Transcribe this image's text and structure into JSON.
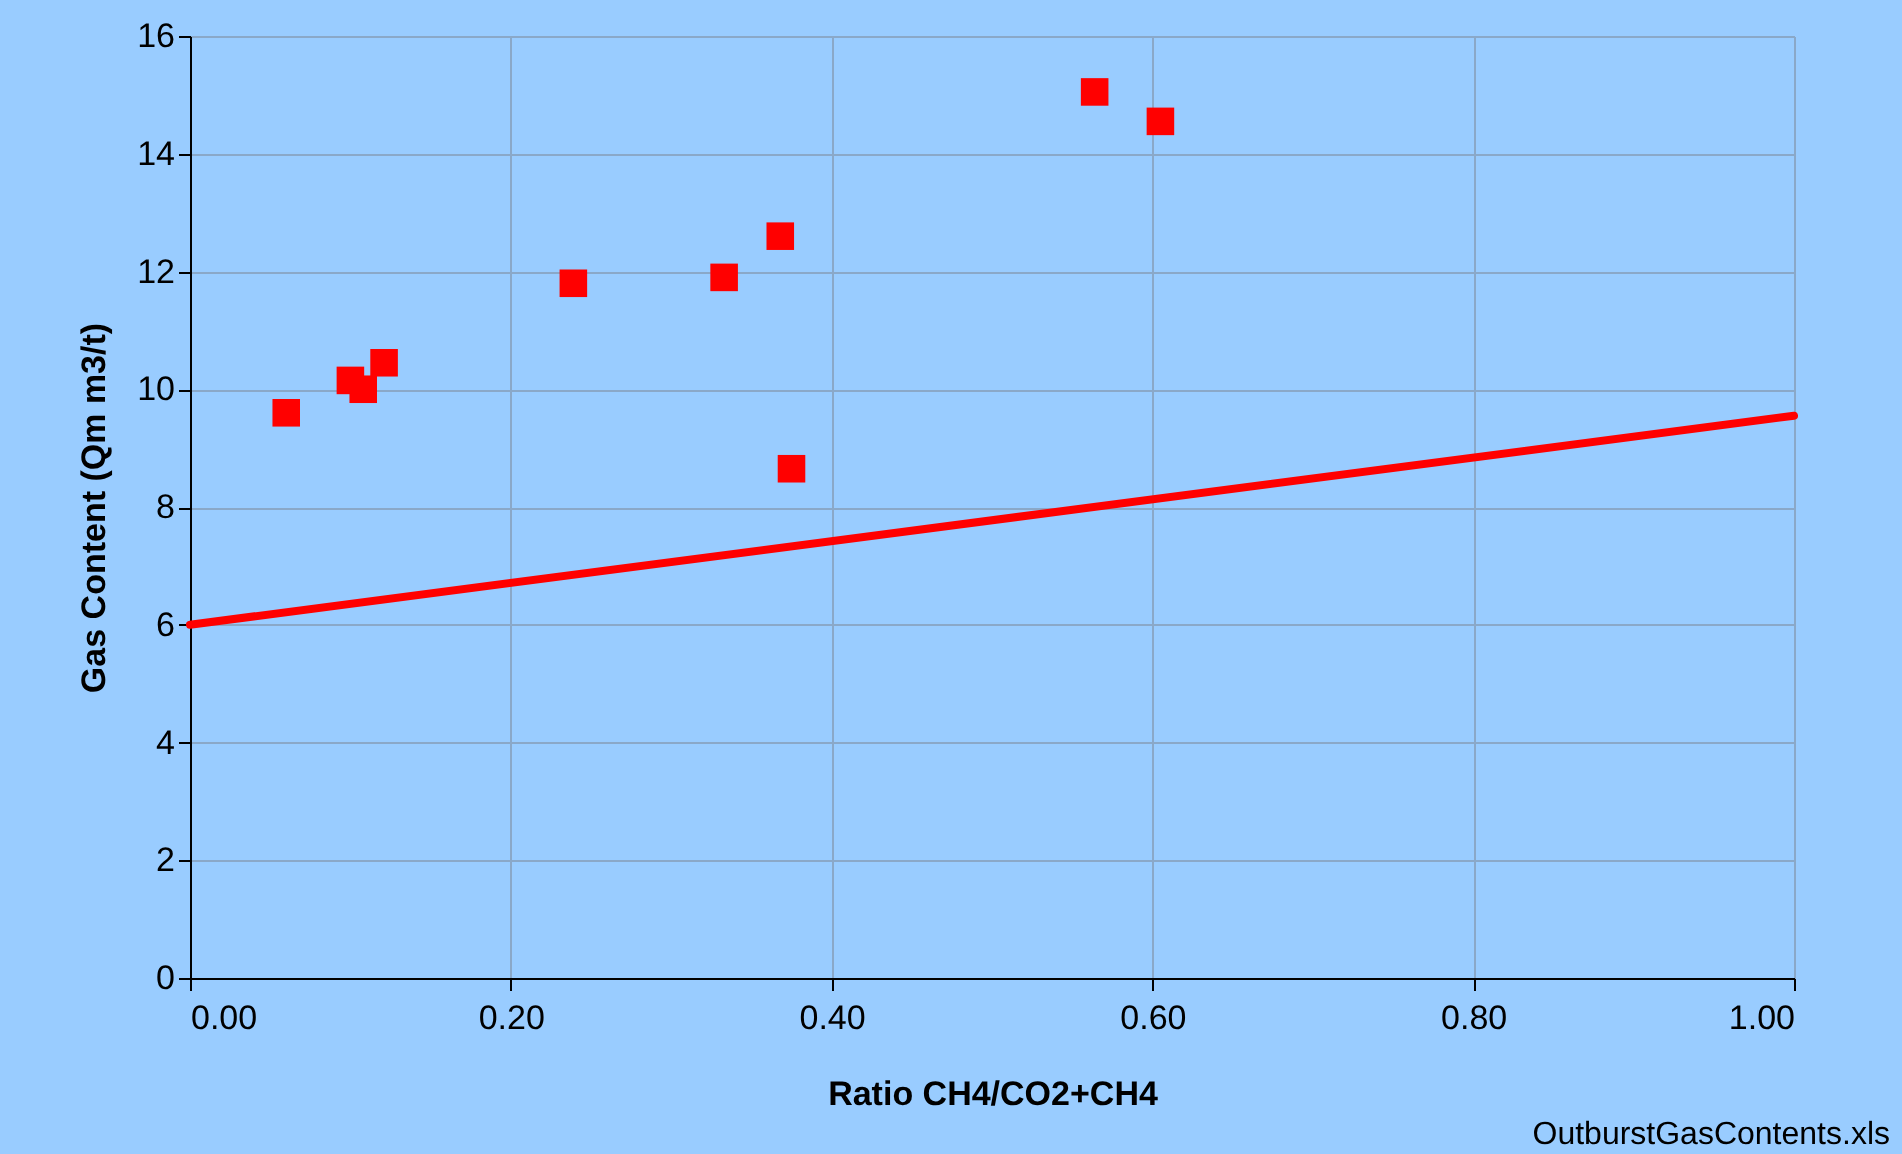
{
  "chart_data": {
    "type": "scatter",
    "xlabel": "Ratio CH4/CO2+CH4",
    "ylabel": "Gas Content (Qm m3/t)",
    "x": [
      0.06,
      0.1,
      0.108,
      0.121,
      0.239,
      0.333,
      0.368,
      0.375,
      0.564,
      0.605
    ],
    "series": [
      {
        "color": "#ff0000",
        "marker": "square",
        "values": [
          9.6,
          10.15,
          10.0,
          10.45,
          11.8,
          11.9,
          12.6,
          8.65,
          15.05,
          14.55
        ]
      },
      {
        "type": "line",
        "color": "#ff0000",
        "x": [
          0,
          1
        ],
        "values": [
          6.0,
          9.55
        ]
      }
    ],
    "xlim": [
      0,
      1
    ],
    "ylim": [
      0,
      16
    ],
    "xticks": [
      {
        "value": 0,
        "label": "0.00"
      },
      {
        "value": 0.2,
        "label": "0.20"
      },
      {
        "value": 0.4,
        "label": "0.40"
      },
      {
        "value": 0.6,
        "label": "0.60"
      },
      {
        "value": 0.8,
        "label": "0.80"
      },
      {
        "value": 1,
        "label": "1.00"
      }
    ],
    "yticks": [
      0,
      2,
      4,
      6,
      8,
      10,
      12,
      14,
      16
    ],
    "grid": true,
    "line_style": "solid",
    "annotations": [
      "OutburstGasContents.xls"
    ]
  }
}
